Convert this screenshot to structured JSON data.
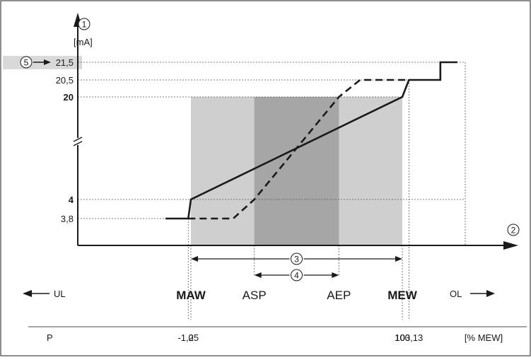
{
  "chart_data": {
    "type": "line",
    "y_axis": {
      "marker": "1",
      "unit": "[mA]",
      "ticks": [
        {
          "value": 3.8,
          "label": "3,8",
          "bold": false
        },
        {
          "value": 4,
          "label": "4",
          "bold": true
        },
        {
          "value": 20,
          "label": "20",
          "bold": true
        },
        {
          "value": 20.5,
          "label": "20,5",
          "bold": false
        },
        {
          "value": 21.5,
          "label": "21,5",
          "bold": false
        }
      ],
      "axis_break": true
    },
    "x_axis": {
      "marker": "2",
      "row_label": "P",
      "unit": "[% MEW]",
      "ticks": [
        {
          "value": -1.25,
          "label": "-1,25"
        },
        {
          "value": 0,
          "label": "0"
        },
        {
          "value": 100,
          "label": "100"
        },
        {
          "value": 103.13,
          "label": "103,13"
        }
      ]
    },
    "series": [
      {
        "style": "solid",
        "points": [
          [
            -12,
            3.8
          ],
          [
            -1.25,
            3.8
          ],
          [
            0,
            4
          ],
          [
            100,
            20
          ],
          [
            103.13,
            20.5
          ],
          [
            118,
            20.5
          ],
          [
            118,
            21.5
          ],
          [
            126,
            21.5
          ]
        ]
      },
      {
        "style": "dashed",
        "points": [
          [
            -1.25,
            3.8
          ],
          [
            20,
            3.8
          ],
          [
            30,
            4
          ],
          [
            70,
            20
          ],
          [
            80,
            20.5
          ],
          [
            103.13,
            20.5
          ]
        ]
      }
    ],
    "regions": [
      {
        "from": 0,
        "to": 100,
        "shade": "#cfcfcf"
      },
      {
        "from": 30,
        "to": 70,
        "shade": "#a6a6a6"
      }
    ],
    "range_markers": [
      {
        "marker": "3",
        "from": 0,
        "to": 100
      },
      {
        "marker": "4",
        "from": 30,
        "to": 70
      }
    ],
    "callout": {
      "marker": "5",
      "target": "21,5"
    },
    "x_labels": {
      "ul": "UL",
      "ol": "OL",
      "maw": "MAW",
      "asp": "ASP",
      "aep": "AEP",
      "mew": "MEW"
    },
    "colors": {
      "line": "#1a1a1a",
      "light_region": "#cfcfcf",
      "dark_region": "#a6a6a6",
      "callout_box": "#d9d9d9",
      "frame": "#444444"
    }
  }
}
